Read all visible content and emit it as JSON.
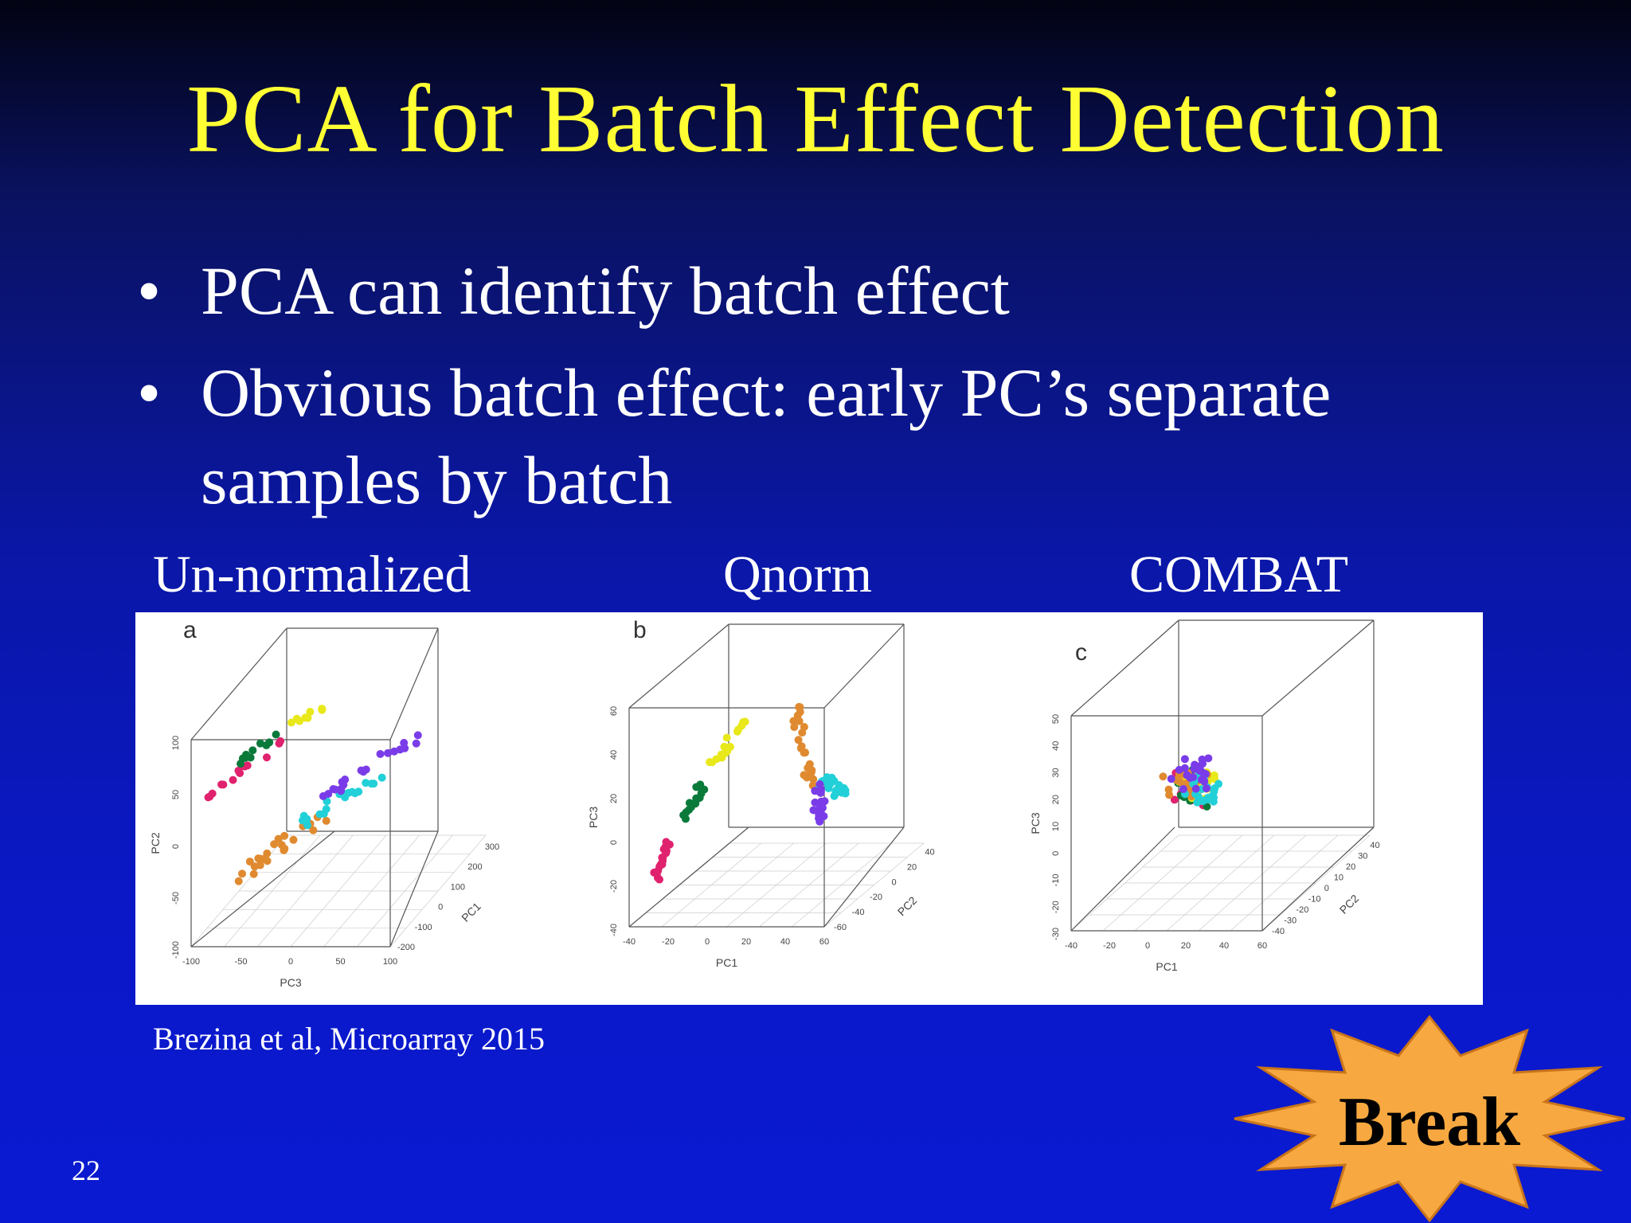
{
  "slide": {
    "title": "PCA for Batch Effect Detection",
    "bullets": [
      "PCA can identify batch effect",
      "Obvious batch effect: early PC’s separate samples by batch"
    ],
    "bullet_marker": "•",
    "panel_labels": [
      "Un-normalized",
      "Qnorm",
      "COMBAT"
    ],
    "citation": "Brezina et al, Microarray 2015",
    "slide_number": "22",
    "break_label": "Break"
  },
  "colors": {
    "title": "#ffff33",
    "text": "#ffffff",
    "batches": [
      "#e0226e",
      "#0a7a3a",
      "#e8e81a",
      "#e08a30",
      "#22d0d8",
      "#7a3ce8"
    ],
    "break_star": "#f7a840"
  },
  "chart_data": [
    {
      "type": "scatter",
      "panel": "a",
      "xlabel": "PC3",
      "ylabel": "PC2",
      "zlabel": "PC1",
      "x_ticks": [
        "-100",
        "-50",
        "0",
        "50",
        "100"
      ],
      "y_ticks": [
        "-100",
        "-50",
        "0",
        "50",
        "100"
      ],
      "z_ticks": [
        "-200",
        "-100",
        "0",
        "100",
        "200",
        "300"
      ]
    },
    {
      "type": "scatter",
      "panel": "b",
      "xlabel": "PC1",
      "ylabel": "PC3",
      "zlabel": "PC2",
      "x_ticks": [
        "-40",
        "-20",
        "0",
        "20",
        "40",
        "60"
      ],
      "y_ticks": [
        "-40",
        "-20",
        "0",
        "20",
        "40",
        "60"
      ],
      "z_ticks": [
        "-60",
        "-40",
        "-20",
        "0",
        "20",
        "40"
      ]
    },
    {
      "type": "scatter",
      "panel": "c",
      "xlabel": "PC1",
      "ylabel": "PC3",
      "zlabel": "PC2",
      "x_ticks": [
        "-40",
        "-20",
        "0",
        "20",
        "40",
        "60"
      ],
      "y_ticks": [
        "-30",
        "-20",
        "-10",
        "0",
        "10",
        "20",
        "30",
        "40",
        "50"
      ],
      "z_ticks": [
        "-40",
        "-30",
        "-20",
        "-10",
        "0",
        "10",
        "20",
        "30",
        "40"
      ]
    }
  ]
}
